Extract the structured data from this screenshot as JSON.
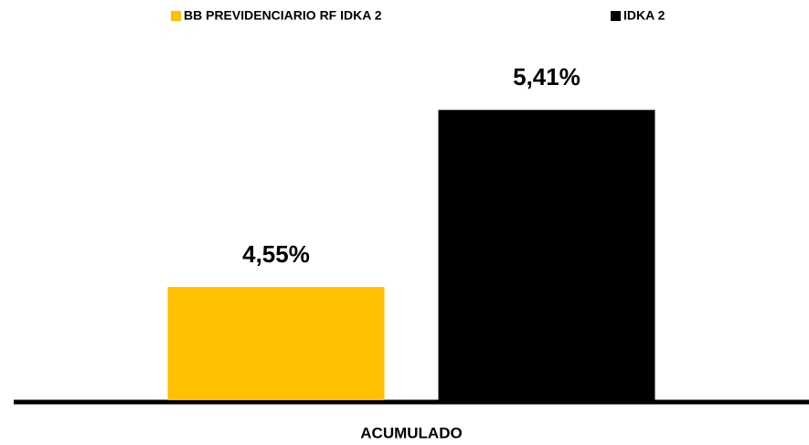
{
  "chart_data": {
    "type": "bar",
    "categories": [
      "ACUMULADO"
    ],
    "series": [
      {
        "name": "BB PREVIDENCIARIO RF IDKA 2",
        "color": "#FFC000",
        "values": [
          4.55
        ],
        "value_labels": [
          "4,55%"
        ]
      },
      {
        "name": "IDKA 2",
        "color": "#000000",
        "values": [
          5.41
        ],
        "value_labels": [
          "5,41%"
        ]
      }
    ],
    "ylim": [
      4,
      5.6
    ],
    "grid": false
  }
}
